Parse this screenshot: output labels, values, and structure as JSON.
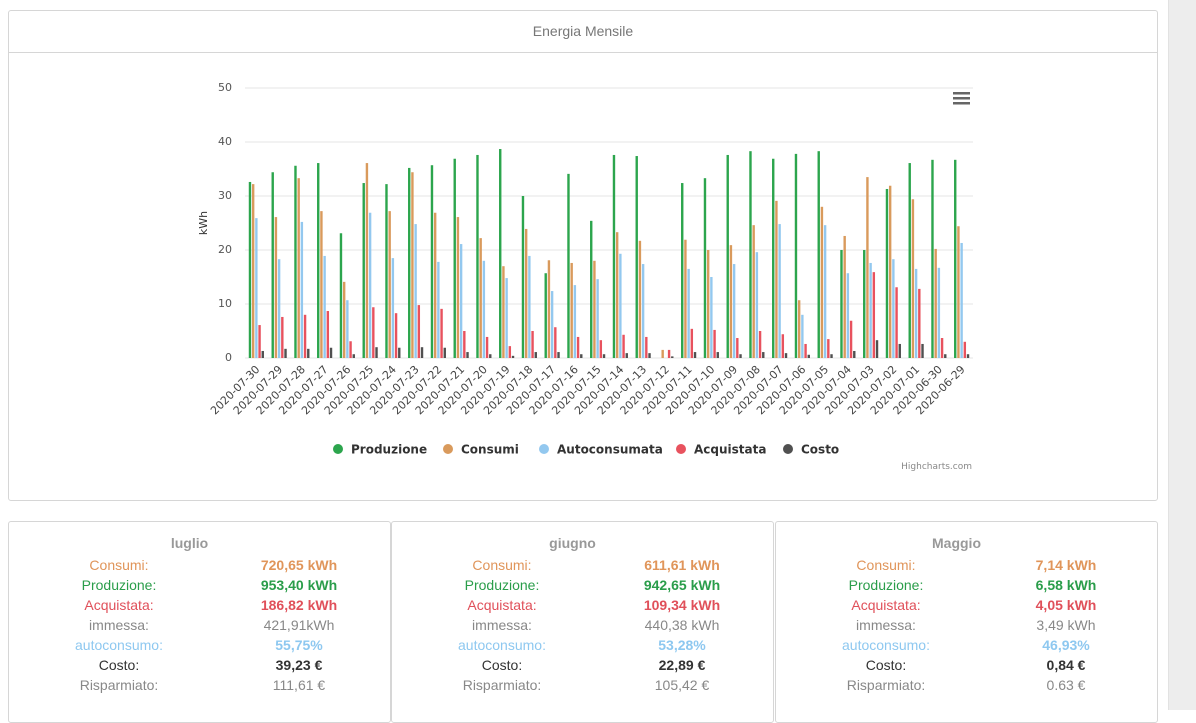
{
  "panel": {
    "title": "Energia Mensile"
  },
  "chart_data": {
    "type": "bar",
    "y_label": "kWh",
    "credit": "Highcharts.com",
    "categories": [
      "2020-07-30",
      "2020-07-29",
      "2020-07-28",
      "2020-07-27",
      "2020-07-26",
      "2020-07-25",
      "2020-07-24",
      "2020-07-23",
      "2020-07-22",
      "2020-07-21",
      "2020-07-20",
      "2020-07-19",
      "2020-07-18",
      "2020-07-17",
      "2020-07-16",
      "2020-07-15",
      "2020-07-14",
      "2020-07-13",
      "2020-07-12",
      "2020-07-11",
      "2020-07-10",
      "2020-07-09",
      "2020-07-08",
      "2020-07-07",
      "2020-07-06",
      "2020-07-05",
      "2020-07-04",
      "2020-07-03",
      "2020-07-02",
      "2020-07-01",
      "2020-06-30",
      "2020-06-29"
    ],
    "series": [
      {
        "name": "Produzione",
        "color": "#2ca54d",
        "values": [
          32.6,
          34.4,
          35.6,
          36.1,
          23.1,
          32.4,
          32.2,
          35.2,
          35.7,
          36.9,
          37.6,
          38.7,
          30.0,
          15.7,
          34.1,
          25.4,
          37.6,
          37.4,
          0,
          32.4,
          33.3,
          37.6,
          38.3,
          36.9,
          37.8,
          38.3,
          20.0,
          20.0,
          31.3,
          36.1,
          36.7,
          36.7
        ]
      },
      {
        "name": "Consumi",
        "color": "#d99a5c",
        "values": [
          32.2,
          26.1,
          33.3,
          27.2,
          14.1,
          36.1,
          27.2,
          34.4,
          26.9,
          26.1,
          22.2,
          17.0,
          23.9,
          18.1,
          17.6,
          18.0,
          23.3,
          21.7,
          1.5,
          21.9,
          20.0,
          20.9,
          24.6,
          29.1,
          10.7,
          28.0,
          22.6,
          33.5,
          31.9,
          29.4,
          20.2,
          24.4
        ]
      },
      {
        "name": "Autoconsumata",
        "color": "#93c8ef",
        "values": [
          25.9,
          18.3,
          25.2,
          18.9,
          10.7,
          26.9,
          18.5,
          24.8,
          17.8,
          21.1,
          18.0,
          14.8,
          18.9,
          12.4,
          13.5,
          14.6,
          19.3,
          17.4,
          0,
          16.5,
          15.0,
          17.4,
          19.6,
          24.8,
          8.0,
          24.6,
          15.7,
          17.6,
          18.3,
          16.5,
          16.7,
          21.3
        ]
      },
      {
        "name": "Acquistata",
        "color": "#e8525e",
        "values": [
          6.1,
          7.6,
          8.0,
          8.7,
          3.1,
          9.4,
          8.3,
          9.8,
          9.1,
          5.0,
          3.9,
          2.2,
          5.0,
          5.7,
          3.9,
          3.3,
          4.3,
          3.9,
          1.5,
          5.4,
          5.2,
          3.7,
          5.0,
          4.4,
          2.6,
          3.5,
          6.9,
          15.9,
          13.1,
          12.8,
          3.7,
          3.0
        ]
      },
      {
        "name": "Costo",
        "color": "#505050",
        "values": [
          1.3,
          1.7,
          1.7,
          1.9,
          0.7,
          2.0,
          1.9,
          2.0,
          1.9,
          1.1,
          0.7,
          0.4,
          1.1,
          1.1,
          0.7,
          0.7,
          0.9,
          0.9,
          0.3,
          1.1,
          1.1,
          0.7,
          1.1,
          0.9,
          0.6,
          0.7,
          1.3,
          3.3,
          2.6,
          2.6,
          0.7,
          0.7
        ]
      }
    ],
    "ylim": [
      0,
      50
    ],
    "yticks": [
      0,
      10,
      20,
      30,
      40,
      50
    ],
    "grid": true
  },
  "cards": [
    {
      "title": "luglio",
      "rows": [
        {
          "label": "Consumi:",
          "value": "720,65 kWh"
        },
        {
          "label": "Produzione:",
          "value": "953,40 kWh"
        },
        {
          "label": "Acquistata:",
          "value": "186,82 kWh"
        },
        {
          "label": "immessa:",
          "value": "421,91kWh"
        },
        {
          "label": "autoconsumo:",
          "value": "55,75%"
        },
        {
          "label": "Costo:",
          "value": "39,23 €"
        },
        {
          "label": "Risparmiato:",
          "value": "111,61 €"
        }
      ]
    },
    {
      "title": "giugno",
      "rows": [
        {
          "label": "Consumi:",
          "value": "611,61 kWh"
        },
        {
          "label": "Produzione:",
          "value": "942,65 kWh"
        },
        {
          "label": "Acquistata:",
          "value": "109,34 kWh"
        },
        {
          "label": "immessa:",
          "value": "440,38 kWh"
        },
        {
          "label": "autoconsumo:",
          "value": "53,28%"
        },
        {
          "label": "Costo:",
          "value": "22,89 €"
        },
        {
          "label": "Risparmiato:",
          "value": "105,42 €"
        }
      ]
    },
    {
      "title": "Maggio",
      "rows": [
        {
          "label": "Consumi:",
          "value": "7,14 kWh"
        },
        {
          "label": "Produzione:",
          "value": "6,58 kWh"
        },
        {
          "label": "Acquistata:",
          "value": "4,05 kWh"
        },
        {
          "label": "immessa:",
          "value": "3,49 kWh"
        },
        {
          "label": "autoconsumo:",
          "value": "46,93%"
        },
        {
          "label": "Costo:",
          "value": "0,84 €"
        },
        {
          "label": "Risparmiato:",
          "value": "0.63 €"
        }
      ]
    }
  ]
}
